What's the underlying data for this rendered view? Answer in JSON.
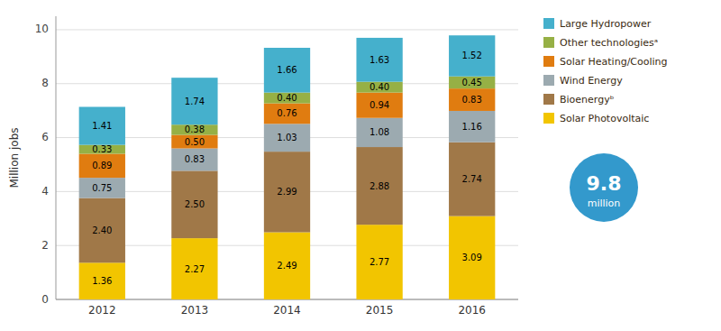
{
  "chart_data": {
    "type": "bar",
    "stacked": true,
    "data_labels": true,
    "grid": true,
    "legend": "upper right",
    "ylabel": "Million jobs",
    "categories": [
      "2012",
      "2013",
      "2014",
      "2015",
      "2016"
    ],
    "ylim": [
      0,
      10.5
    ],
    "yticks": [
      0,
      2,
      4,
      6,
      8,
      10
    ],
    "series": [
      {
        "name": "Solar Photovoltaic",
        "color": "#f2c500",
        "values": [
          1.36,
          2.27,
          2.49,
          2.77,
          3.09
        ],
        "value_labels": [
          "1.36",
          "2.27",
          "2.49",
          "2.77",
          "3.09"
        ]
      },
      {
        "name": "Bioenergyᵇ",
        "color": "#a07848",
        "values": [
          2.4,
          2.5,
          2.99,
          2.88,
          2.74
        ],
        "value_labels": [
          "2.40",
          "2.50",
          "2.99",
          "2.88",
          "2.74"
        ]
      },
      {
        "name": "Wind Energy",
        "color": "#9caab0",
        "values": [
          0.75,
          0.83,
          1.03,
          1.08,
          1.16
        ],
        "value_labels": [
          "0.75",
          "0.83",
          "1.03",
          "1.08",
          "1.16"
        ]
      },
      {
        "name": "Solar Heating/Cooling",
        "color": "#e07c10",
        "values": [
          0.89,
          0.5,
          0.76,
          0.94,
          0.83
        ],
        "value_labels": [
          "0.89",
          "0.50",
          "0.76",
          "0.94",
          "0.83"
        ]
      },
      {
        "name": "Other technologiesᵃ",
        "color": "#96b045",
        "values": [
          0.33,
          0.38,
          0.4,
          0.4,
          0.45
        ],
        "value_labels": [
          "0.33",
          "0.38",
          "0.40",
          "0.40",
          "0.45"
        ]
      },
      {
        "name": "Large Hydropower",
        "color": "#45b0cc",
        "values": [
          1.41,
          1.74,
          1.66,
          1.63,
          1.52
        ],
        "value_labels": [
          "1.41",
          "1.74",
          "1.66",
          "1.63",
          "1.52"
        ]
      }
    ],
    "annotations": [
      {
        "text": "9.8",
        "color": "#3399cc"
      },
      {
        "text": "million"
      }
    ]
  }
}
